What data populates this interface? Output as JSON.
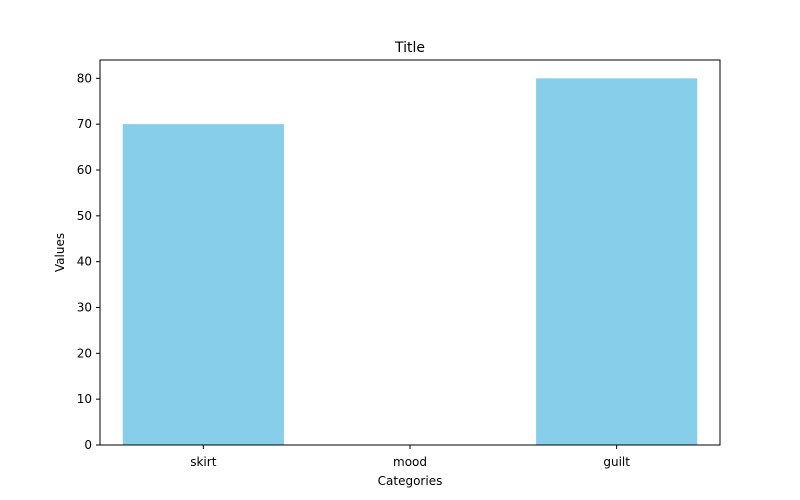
{
  "chart_data": {
    "type": "bar",
    "title": "Title",
    "xlabel": "Categories",
    "ylabel": "Values",
    "categories": [
      "skirt",
      "mood",
      "guilt"
    ],
    "values": [
      70,
      0,
      80
    ],
    "ylim": [
      0,
      84
    ],
    "yticks": [
      "0",
      "10",
      "20",
      "30",
      "40",
      "50",
      "60",
      "70",
      "80"
    ],
    "grid": false,
    "bar_color": "#87ceeb"
  }
}
